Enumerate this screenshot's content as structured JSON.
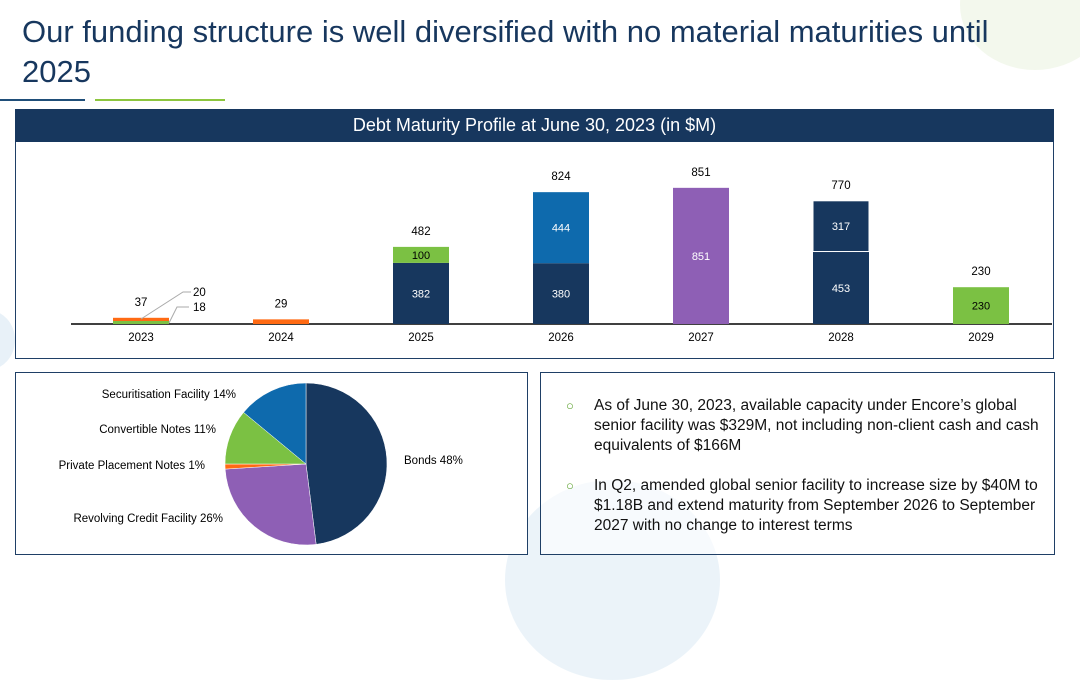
{
  "title": "Our funding structure is well diversified with no material maturities until 2025",
  "colors": {
    "bonds": "#17375e",
    "securitisation": "#0e6aad",
    "revolving": "#8e5fb5",
    "convertible": "#7bc143",
    "private_placement": "#ff6a13"
  },
  "chart_data": [
    {
      "type": "bar",
      "stacked": true,
      "title": "Debt Maturity Profile at June 30, 2023 (in $M)",
      "categories": [
        "2023",
        "2024",
        "2025",
        "2026",
        "2027",
        "2028",
        "2029"
      ],
      "series": [
        {
          "key": "bonds_a",
          "color": "#17375e",
          "values": [
            0,
            0,
            382,
            380,
            0,
            453,
            0
          ]
        },
        {
          "key": "bonds_b",
          "color": "#17375e",
          "values": [
            0,
            0,
            0,
            0,
            0,
            317,
            0
          ]
        },
        {
          "key": "securitisation",
          "color": "#0e6aad",
          "values": [
            0,
            0,
            0,
            444,
            0,
            0,
            0
          ]
        },
        {
          "key": "revolving",
          "color": "#8e5fb5",
          "values": [
            0,
            0,
            0,
            0,
            851,
            0,
            0
          ]
        },
        {
          "key": "convertible",
          "color": "#7bc143",
          "values": [
            18,
            0,
            100,
            0,
            0,
            0,
            230
          ]
        },
        {
          "key": "private_placement",
          "color": "#ff6a13",
          "values": [
            20,
            29,
            0,
            0,
            0,
            0,
            0
          ]
        }
      ],
      "totals": [
        "37",
        "29",
        "482",
        "824",
        "851",
        "770",
        "230"
      ],
      "callouts": [
        "20",
        "18"
      ],
      "grid": false
    },
    {
      "type": "pie",
      "slices": [
        {
          "label": "Bonds 48%",
          "value": 48,
          "color": "#17375e"
        },
        {
          "label": "Revolving Credit Facility 26%",
          "value": 26,
          "color": "#8e5fb5"
        },
        {
          "label": "Private Placement Notes 1%",
          "value": 1,
          "color": "#ff6a13"
        },
        {
          "label": "Convertible Notes 11%",
          "value": 11,
          "color": "#7bc143"
        },
        {
          "label": "Securitisation Facility 14%",
          "value": 14,
          "color": "#0e6aad"
        }
      ]
    }
  ],
  "bullets": [
    "As of June 30, 2023, available capacity under Encore’s global senior facility was $329M, not including non-client cash and cash equivalents of $166M",
    "In Q2, amended global senior facility to increase size by $40M to $1.18B and extend maturity from September 2026 to September 2027 with no change to interest terms"
  ],
  "bullet_icon": "hollow-circle-icon"
}
